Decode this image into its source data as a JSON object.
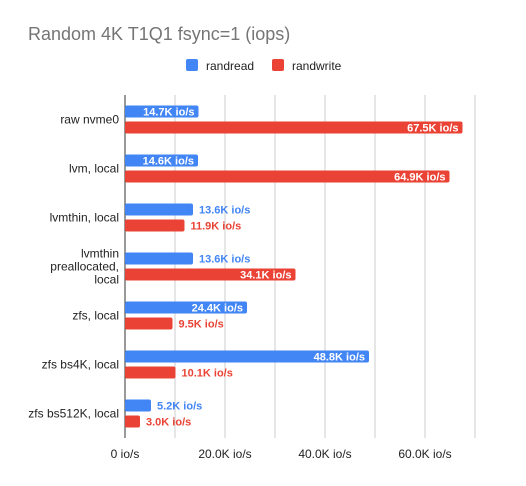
{
  "chart_data": {
    "type": "bar",
    "orientation": "horizontal",
    "title": "Random 4K T1Q1 fsync=1 (iops)",
    "xlabel": "",
    "ylabel": "",
    "xlim": [
      0,
      75000
    ],
    "grid": true,
    "legend_position": "top",
    "ticks": [
      {
        "value": 0,
        "label": "0 io/s"
      },
      {
        "value": 20000,
        "label": "20.0K io/s"
      },
      {
        "value": 40000,
        "label": "40.0K io/s"
      },
      {
        "value": 60000,
        "label": "60.0K io/s"
      }
    ],
    "categories": [
      [
        "raw nvme0"
      ],
      [
        "lvm, local"
      ],
      [
        "lvmthin, local"
      ],
      [
        "lvmthin",
        "preallocated,",
        "local"
      ],
      [
        "zfs, local"
      ],
      [
        "zfs bs4K, local"
      ],
      [
        "zfs bs512K, local"
      ]
    ],
    "series": [
      {
        "name": "randread",
        "color": "#4285f4",
        "values": [
          14700,
          14600,
          13600,
          13600,
          24400,
          48800,
          5200
        ],
        "labels": [
          "14.7K io/s",
          "14.6K io/s",
          "13.6K io/s",
          "13.6K io/s",
          "24.4K io/s",
          "48.8K io/s",
          "5.2K io/s"
        ]
      },
      {
        "name": "randwrite",
        "color": "#ea4335",
        "values": [
          67500,
          64900,
          11900,
          34100,
          9500,
          10100,
          3000
        ],
        "labels": [
          "67.5K io/s",
          "64.9K io/s",
          "11.9K io/s",
          "34.1K io/s",
          "9.5K io/s",
          "10.1K io/s",
          "3.0K io/s"
        ]
      }
    ]
  }
}
